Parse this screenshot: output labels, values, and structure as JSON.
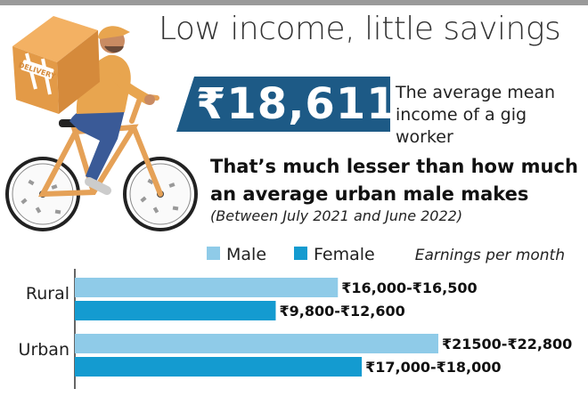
{
  "header": {
    "title": "Low income, little savings"
  },
  "stat": {
    "value": "₹18,611",
    "caption": "The average mean income of a gig worker"
  },
  "subtitle": {
    "title": "That’s much lesser than how much an average urban male makes",
    "period": "(Between July 2021 and June 2022)"
  },
  "illustration": {
    "box_text": "DELIVERY"
  },
  "colors": {
    "male": "#8fcbe8",
    "female": "#149bd0",
    "stat_box": "#1d5a86"
  },
  "chart_data": {
    "type": "bar",
    "orientation": "horizontal",
    "categories": [
      "Rural",
      "Urban"
    ],
    "legend": [
      "Male",
      "Female"
    ],
    "axis_note": "Earnings per month",
    "series": [
      {
        "name": "Male",
        "ranges": [
          [
            16000,
            16500
          ],
          [
            21500,
            22800
          ]
        ],
        "labels": [
          "₹16,000-₹16,500",
          "₹21500-₹22,800"
        ]
      },
      {
        "name": "Female",
        "ranges": [
          [
            9800,
            12600
          ],
          [
            17000,
            18000
          ]
        ],
        "labels": [
          "₹9,800-₹12,600",
          "₹17,000-₹18,000"
        ]
      }
    ],
    "xlim": [
      0,
      22800
    ],
    "grid": false,
    "legend_position": "top"
  }
}
